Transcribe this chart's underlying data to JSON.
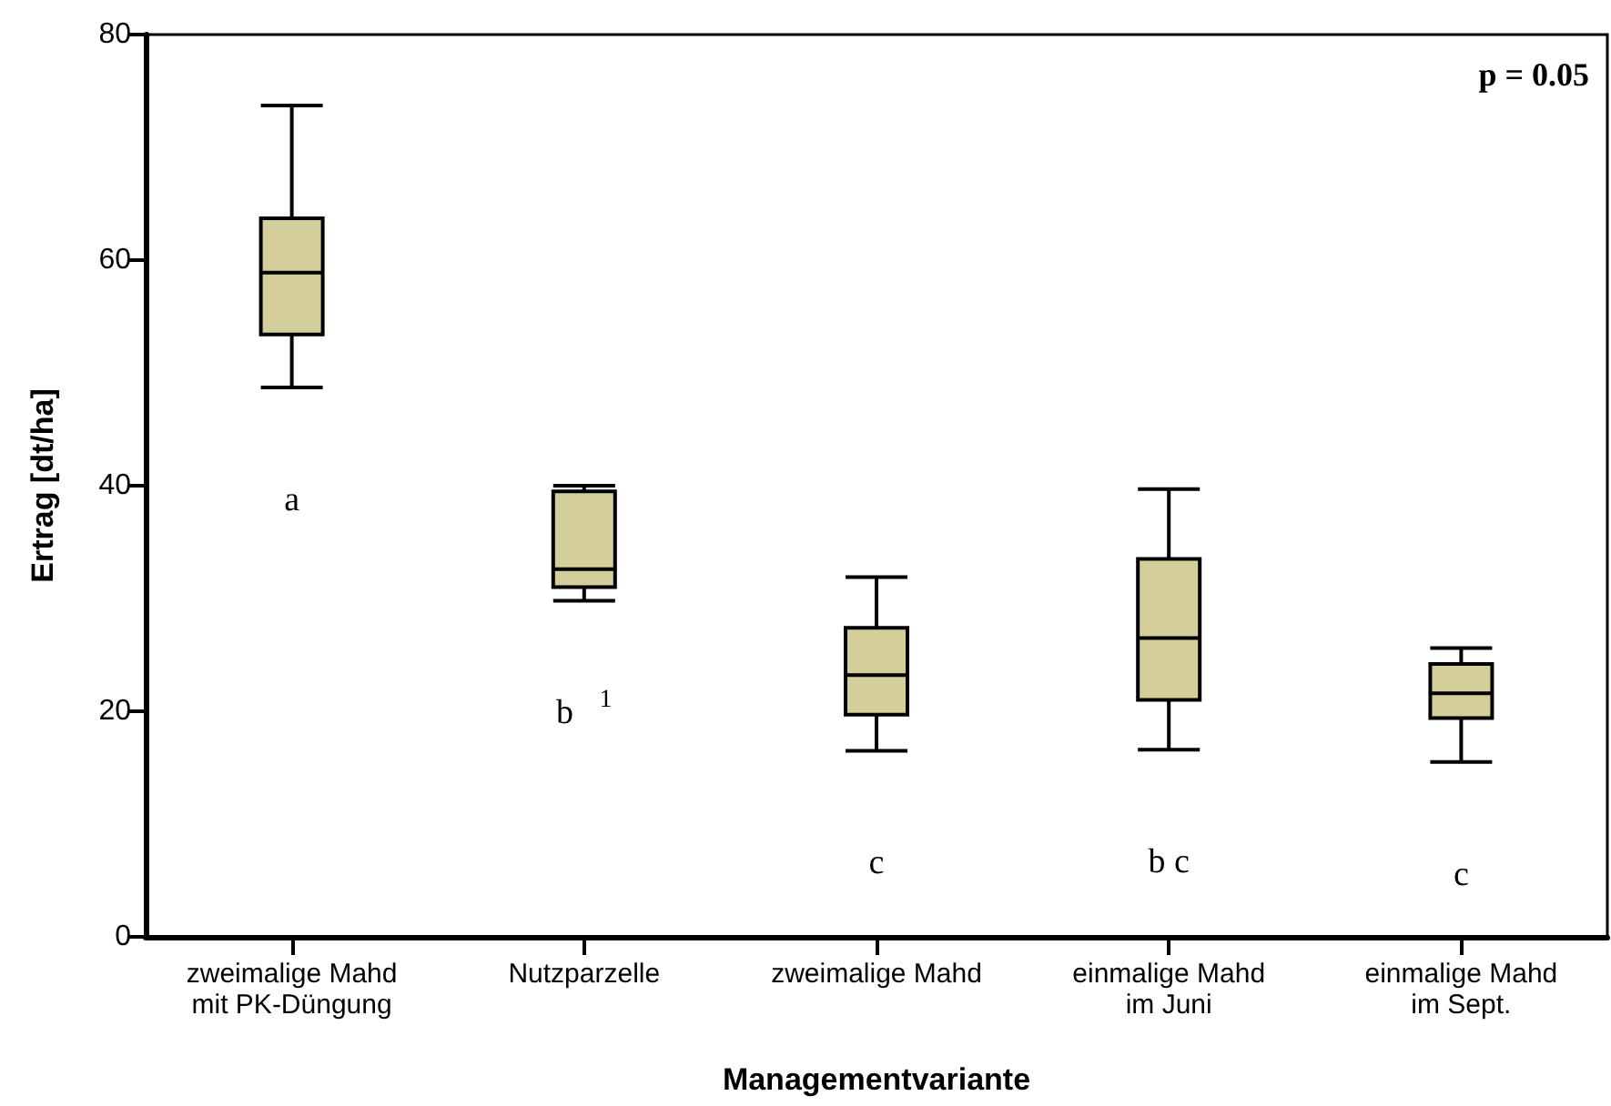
{
  "chart_data": {
    "type": "box",
    "xlabel": "Managementvariante",
    "ylabel": "Ertrag [dt/ha]",
    "categories": [
      "zweimalige Mahd\nmit PK-Düngung",
      "Nutzparzelle",
      "zweimalige Mahd",
      "einmalige Mahd\nim Juni",
      "einmalige Mahd\nim Sept."
    ],
    "color": "#d4ce9a",
    "boxes": [
      {
        "low": 48.7,
        "q1": 53.4,
        "median": 58.9,
        "q3": 63.7,
        "high": 73.7
      },
      {
        "low": 29.8,
        "q1": 31.0,
        "median": 32.6,
        "q3": 39.5,
        "high": 40.0
      },
      {
        "low": 16.5,
        "q1": 19.7,
        "median": 23.2,
        "q3": 27.4,
        "high": 31.9
      },
      {
        "low": 16.6,
        "q1": 21.0,
        "median": 26.5,
        "q3": 33.5,
        "high": 39.7
      },
      {
        "low": 15.5,
        "q1": 19.4,
        "median": 21.6,
        "q3": 24.2,
        "high": 25.6
      }
    ],
    "ylim": [
      0,
      80
    ],
    "yticks": [
      0,
      20,
      40,
      60,
      80
    ],
    "grid": false,
    "annotations": [
      "p = 0.05",
      "a",
      "b   $^{1}$",
      "c",
      "b c",
      "c"
    ]
  }
}
